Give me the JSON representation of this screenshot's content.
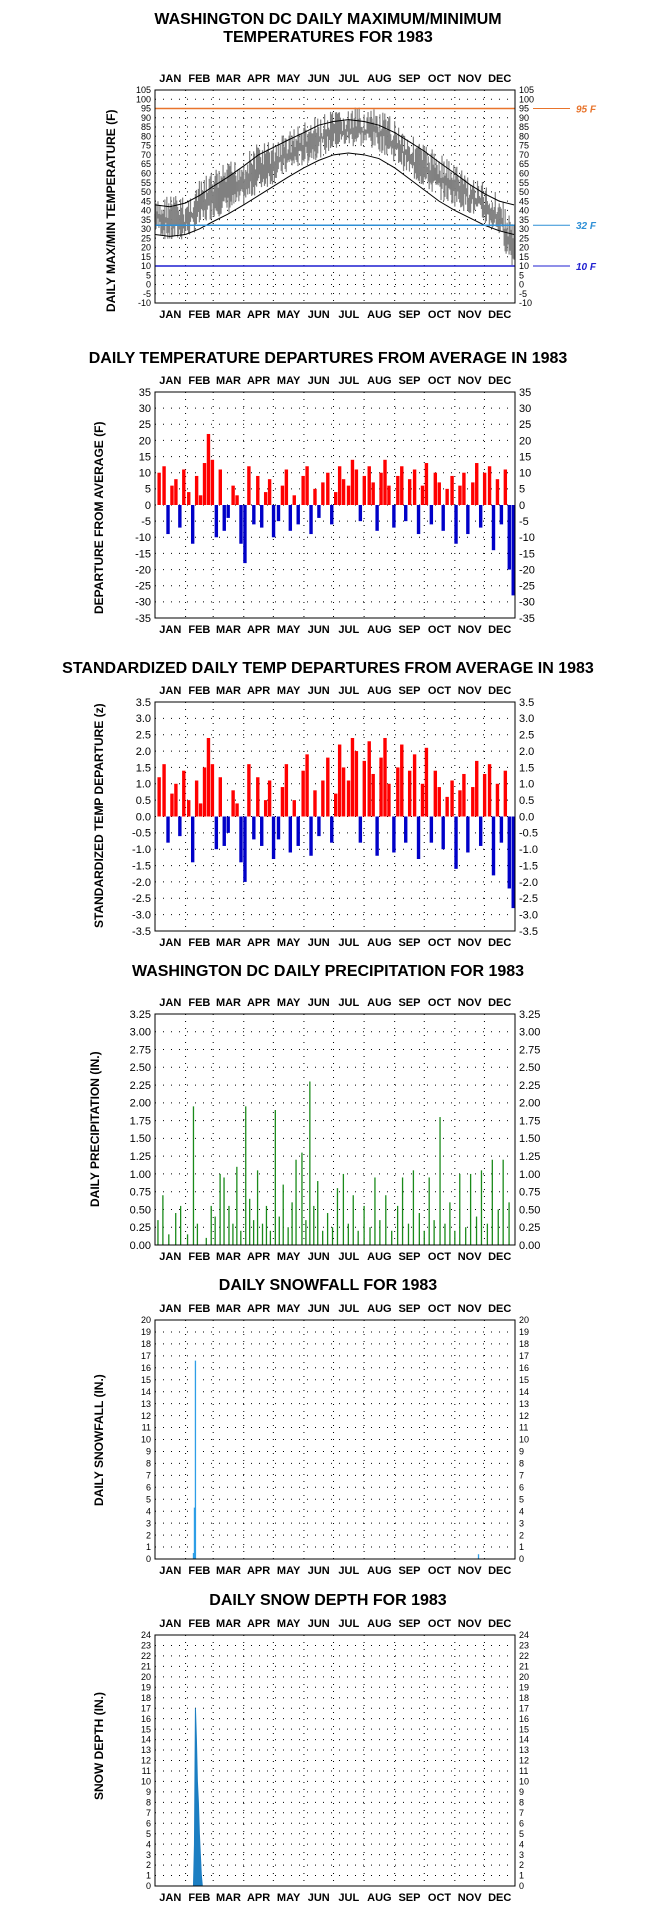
{
  "chart_data": [
    {
      "id": "temp",
      "type": "line",
      "title": "WASHINGTON DC DAILY MAXIMUM/MINIMUM TEMPERATURES FOR 1983",
      "title_lines": [
        "WASHINGTON DC DAILY MAXIMUM/MINIMUM",
        "TEMPERATURES FOR 1983"
      ],
      "ylabel": "DAILY MAX/MIN TEMPERATURE (F)",
      "ylim": [
        -10,
        105
      ],
      "yticks": [
        -10,
        -5,
        0,
        5,
        10,
        15,
        20,
        25,
        30,
        35,
        40,
        45,
        50,
        55,
        60,
        65,
        70,
        75,
        80,
        85,
        90,
        95,
        100,
        105
      ],
      "months": [
        "JAN",
        "FEB",
        "MAR",
        "APR",
        "MAY",
        "JUN",
        "JUL",
        "AUG",
        "SEP",
        "OCT",
        "NOV",
        "DEC"
      ],
      "reference_lines": [
        {
          "value": 95,
          "label": "95 F",
          "color": "#e8742c"
        },
        {
          "value": 32,
          "label": "32 F",
          "color": "#2e8fd6"
        },
        {
          "value": 10,
          "label": "10 F",
          "color": "#1f1fd0"
        }
      ],
      "series": [
        {
          "kind": "observed",
          "color": "#808080",
          "x": [
            1,
            16,
            32,
            46,
            60,
            75,
            91,
            106,
            121,
            136,
            152,
            167,
            182,
            197,
            213,
            228,
            244,
            259,
            274,
            289,
            305,
            320,
            335,
            350,
            358,
            365
          ],
          "high": [
            45,
            50,
            47,
            56,
            62,
            66,
            70,
            77,
            78,
            84,
            88,
            91,
            94,
            95,
            96,
            94,
            90,
            82,
            76,
            72,
            66,
            60,
            55,
            50,
            40,
            35
          ],
          "low": [
            28,
            22,
            24,
            30,
            36,
            38,
            42,
            50,
            54,
            60,
            64,
            68,
            72,
            74,
            74,
            72,
            66,
            58,
            52,
            46,
            42,
            38,
            32,
            26,
            15,
            8
          ]
        },
        {
          "kind": "normal_max",
          "color": "#000000",
          "x": [
            1,
            16,
            32,
            46,
            60,
            75,
            91,
            106,
            121,
            136,
            152,
            167,
            182,
            197,
            213,
            228,
            244,
            259,
            274,
            289,
            305,
            320,
            335,
            350,
            365
          ],
          "values": [
            43,
            42,
            44,
            48,
            53,
            58,
            64,
            70,
            74,
            78,
            82,
            86,
            88,
            89,
            88,
            86,
            82,
            77,
            72,
            66,
            60,
            54,
            49,
            45,
            43
          ]
        },
        {
          "kind": "normal_min",
          "color": "#000000",
          "x": [
            1,
            16,
            32,
            46,
            60,
            75,
            91,
            106,
            121,
            136,
            152,
            167,
            182,
            197,
            213,
            228,
            244,
            259,
            274,
            289,
            305,
            320,
            335,
            350,
            365
          ],
          "values": [
            27,
            26,
            27,
            30,
            34,
            38,
            43,
            48,
            53,
            58,
            63,
            67,
            70,
            71,
            70,
            68,
            63,
            57,
            51,
            45,
            40,
            36,
            32,
            29,
            27
          ]
        }
      ]
    },
    {
      "id": "dep",
      "type": "bar",
      "title": "DAILY TEMPERATURE DEPARTURES FROM AVERAGE IN 1983",
      "ylabel": "DEPARTURE FROM AVERAGE (F)",
      "ylim": [
        -35,
        35
      ],
      "yticks": [
        -35,
        -30,
        -25,
        -20,
        -15,
        -10,
        -5,
        0,
        5,
        10,
        15,
        20,
        25,
        30,
        35
      ],
      "months": [
        "JAN",
        "FEB",
        "MAR",
        "APR",
        "MAY",
        "JUN",
        "JUL",
        "AUG",
        "SEP",
        "OCT",
        "NOV",
        "DEC"
      ],
      "colors": {
        "positive": "#ff0000",
        "negative": "#0000c8"
      },
      "x": [
        5,
        10,
        14,
        18,
        22,
        26,
        30,
        35,
        39,
        43,
        47,
        51,
        55,
        59,
        63,
        67,
        71,
        75,
        80,
        84,
        88,
        92,
        96,
        101,
        105,
        109,
        113,
        117,
        121,
        126,
        130,
        134,
        138,
        142,
        146,
        151,
        155,
        159,
        163,
        167,
        171,
        176,
        180,
        184,
        188,
        192,
        197,
        201,
        205,
        209,
        213,
        218,
        222,
        226,
        230,
        234,
        238,
        243,
        247,
        251,
        255,
        259,
        264,
        268,
        272,
        276,
        281,
        285,
        289,
        293,
        297,
        302,
        306,
        310,
        314,
        318,
        323,
        327,
        331,
        335,
        340,
        344,
        348,
        352,
        356,
        360,
        364
      ],
      "values": [
        10,
        12,
        -9,
        6,
        8,
        -7,
        11,
        4,
        -12,
        9,
        3,
        13,
        22,
        14,
        -10,
        11,
        -8,
        -4,
        6,
        3,
        -12,
        -18,
        12,
        -6,
        9,
        -7,
        4,
        8,
        -10,
        -5,
        6,
        11,
        -8,
        3,
        -6,
        9,
        12,
        -9,
        5,
        -4,
        7,
        10,
        -6,
        4,
        12,
        8,
        6,
        14,
        11,
        -5,
        9,
        12,
        7,
        -8,
        10,
        14,
        6,
        -7,
        9,
        12,
        -5,
        8,
        11,
        -9,
        6,
        13,
        -6,
        10,
        7,
        -8,
        5,
        9,
        -12,
        6,
        10,
        -9,
        7,
        13,
        -7,
        10,
        12,
        -14,
        8,
        -6,
        11,
        -20,
        -28
      ]
    },
    {
      "id": "std",
      "type": "bar",
      "title": "STANDARDIZED DAILY TEMP DEPARTURES FROM AVERAGE IN 1983",
      "ylabel": "STANDARDIZED TEMP DEPARTURE (z)",
      "ylim": [
        -3.5,
        3.5
      ],
      "yticks": [
        -3.5,
        -3.0,
        -2.5,
        -2.0,
        -1.5,
        -1.0,
        -0.5,
        0.0,
        0.5,
        1.0,
        1.5,
        2.0,
        2.5,
        3.0,
        3.5
      ],
      "months": [
        "JAN",
        "FEB",
        "MAR",
        "APR",
        "MAY",
        "JUN",
        "JUL",
        "AUG",
        "SEP",
        "OCT",
        "NOV",
        "DEC"
      ],
      "colors": {
        "positive": "#ff0000",
        "negative": "#0000c8"
      },
      "x": [
        5,
        10,
        14,
        18,
        22,
        26,
        30,
        35,
        39,
        43,
        47,
        51,
        55,
        59,
        63,
        67,
        71,
        75,
        80,
        84,
        88,
        92,
        96,
        101,
        105,
        109,
        113,
        117,
        121,
        126,
        130,
        134,
        138,
        142,
        146,
        151,
        155,
        159,
        163,
        167,
        171,
        176,
        180,
        184,
        188,
        192,
        197,
        201,
        205,
        209,
        213,
        218,
        222,
        226,
        230,
        234,
        238,
        243,
        247,
        251,
        255,
        259,
        264,
        268,
        272,
        276,
        281,
        285,
        289,
        293,
        297,
        302,
        306,
        310,
        314,
        318,
        323,
        327,
        331,
        335,
        340,
        344,
        348,
        352,
        356,
        360,
        364
      ],
      "values": [
        1.2,
        1.6,
        -0.8,
        0.7,
        1.0,
        -0.6,
        1.4,
        0.5,
        -1.4,
        1.1,
        0.4,
        1.5,
        2.4,
        1.6,
        -1.0,
        1.2,
        -0.9,
        -0.5,
        0.8,
        0.4,
        -1.4,
        -2.0,
        1.6,
        -0.7,
        1.2,
        -0.9,
        0.5,
        1.1,
        -1.3,
        -0.7,
        0.9,
        1.6,
        -1.1,
        0.5,
        -0.9,
        1.4,
        1.9,
        -1.2,
        0.8,
        -0.6,
        1.1,
        1.8,
        -0.8,
        0.7,
        2.2,
        1.5,
        1.1,
        2.4,
        2.0,
        -0.8,
        1.7,
        2.3,
        1.3,
        -1.2,
        1.8,
        2.4,
        1.0,
        -1.1,
        1.5,
        2.2,
        -0.8,
        1.4,
        1.9,
        -1.3,
        1.0,
        2.1,
        -0.8,
        1.4,
        0.9,
        -1.0,
        0.6,
        1.1,
        -1.6,
        0.8,
        1.3,
        -1.1,
        0.9,
        1.7,
        -0.9,
        1.3,
        1.6,
        -1.8,
        1.0,
        -0.8,
        1.4,
        -2.2,
        -2.8
      ]
    },
    {
      "id": "prcp",
      "type": "bar",
      "title": "WASHINGTON DC DAILY PRECIPITATION FOR 1983",
      "ylabel": "DAILY PRECIPITATION (IN.)",
      "ylim": [
        0,
        3.25
      ],
      "yticks": [
        0.0,
        0.25,
        0.5,
        0.75,
        1.0,
        1.25,
        1.5,
        1.75,
        2.0,
        2.25,
        2.5,
        2.75,
        3.0,
        3.25
      ],
      "months": [
        "JAN",
        "FEB",
        "MAR",
        "APR",
        "MAY",
        "JUN",
        "JUL",
        "AUG",
        "SEP",
        "OCT",
        "NOV",
        "DEC"
      ],
      "color": "#1a8a1a",
      "x": [
        4,
        9,
        15,
        22,
        27,
        34,
        40,
        44,
        53,
        58,
        62,
        67,
        71,
        76,
        80,
        84,
        88,
        93,
        97,
        101,
        105,
        110,
        114,
        118,
        123,
        127,
        131,
        136,
        140,
        144,
        150,
        154,
        158,
        162,
        166,
        171,
        176,
        181,
        186,
        192,
        197,
        202,
        207,
        213,
        219,
        224,
        229,
        235,
        241,
        247,
        252,
        258,
        263,
        269,
        274,
        279,
        284,
        290,
        295,
        300,
        305,
        310,
        316,
        321,
        327,
        332,
        338,
        343,
        349,
        354,
        360
      ],
      "values": [
        0.35,
        0.7,
        0.15,
        0.45,
        0.55,
        0.15,
        1.95,
        0.3,
        0.1,
        0.55,
        0.4,
        1.0,
        0.95,
        0.55,
        0.3,
        1.1,
        0.2,
        1.95,
        0.65,
        0.35,
        1.05,
        0.3,
        0.55,
        0.2,
        1.9,
        0.4,
        0.85,
        0.25,
        0.6,
        1.2,
        1.3,
        0.35,
        2.3,
        0.55,
        0.9,
        0.2,
        0.45,
        0.25,
        0.8,
        1.0,
        0.3,
        0.7,
        0.2,
        0.55,
        0.25,
        0.95,
        0.35,
        0.7,
        0.2,
        0.55,
        0.95,
        0.3,
        1.05,
        0.45,
        0.2,
        0.95,
        0.35,
        1.8,
        0.3,
        0.6,
        0.2,
        1.0,
        0.25,
        1.0,
        0.4,
        1.05,
        0.3,
        1.2,
        0.5,
        1.2,
        0.6
      ]
    },
    {
      "id": "snow",
      "type": "bar",
      "title": "DAILY SNOWFALL FOR 1983",
      "ylabel": "DAILY SNOWFALL (IN.)",
      "ylim": [
        0,
        20
      ],
      "yticks": [
        0,
        1,
        2,
        3,
        4,
        5,
        6,
        7,
        8,
        9,
        10,
        11,
        12,
        13,
        14,
        15,
        16,
        17,
        18,
        19,
        20
      ],
      "months": [
        "JAN",
        "FEB",
        "MAR",
        "APR",
        "MAY",
        "JUN",
        "JUL",
        "AUG",
        "SEP",
        "OCT",
        "NOV",
        "DEC"
      ],
      "color": "#2e9ee6",
      "x": [
        40,
        41,
        42,
        329
      ],
      "values": [
        0.5,
        4.3,
        16.6,
        0.4
      ]
    },
    {
      "id": "depth",
      "type": "area",
      "title": "DAILY SNOW DEPTH FOR 1983",
      "ylabel": "SNOW DEPTH (IN.)",
      "ylim": [
        0,
        24
      ],
      "yticks": [
        0,
        1,
        2,
        3,
        4,
        5,
        6,
        7,
        8,
        9,
        10,
        11,
        12,
        13,
        14,
        15,
        16,
        17,
        18,
        19,
        20,
        21,
        22,
        23,
        24
      ],
      "months": [
        "JAN",
        "FEB",
        "MAR",
        "APR",
        "MAY",
        "JUN",
        "JUL",
        "AUG",
        "SEP",
        "OCT",
        "NOV",
        "DEC"
      ],
      "color": "#1c7ec2",
      "x": [
        40,
        41,
        42,
        43,
        44,
        45,
        46,
        47,
        48,
        49
      ],
      "values": [
        0,
        4,
        17,
        14,
        10,
        8,
        5,
        3,
        1,
        0
      ]
    }
  ]
}
